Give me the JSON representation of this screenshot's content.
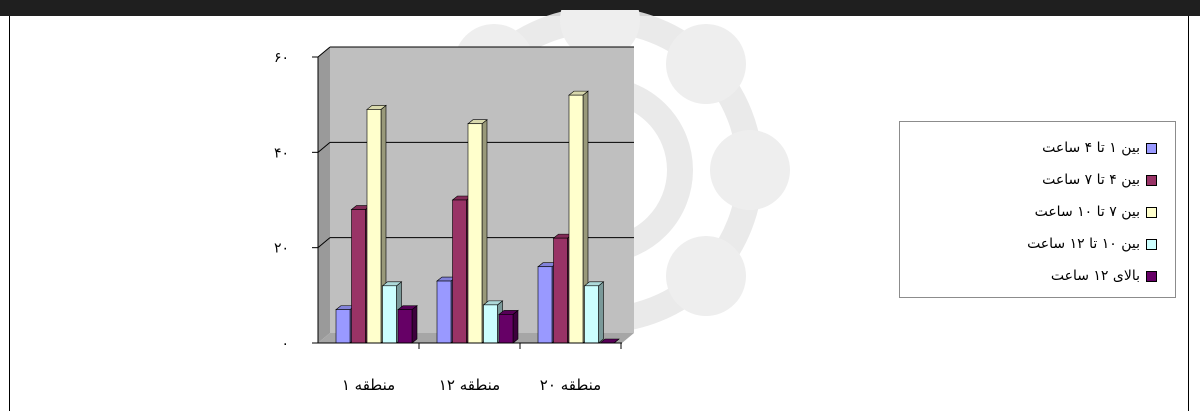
{
  "chart_data": {
    "type": "bar",
    "categories": [
      "منطقه ۱",
      "منطقه ۱۲",
      "منطقه ۲۰"
    ],
    "yticks": [
      "۰",
      "۲۰",
      "۴۰",
      "۶۰"
    ],
    "ylim": [
      0,
      60
    ],
    "grid": true,
    "legend_position": "right",
    "series": [
      {
        "name": "بین  ۱ تا ۴ ساعت",
        "color": "#9999ff",
        "values": [
          7,
          13,
          16
        ]
      },
      {
        "name": "بین  ۴ تا ۷ ساعت",
        "color": "#993366",
        "values": [
          28,
          30,
          22
        ]
      },
      {
        "name": "بین  ۷ تا ۱۰ ساعت",
        "color": "#ffffcc",
        "values": [
          49,
          46,
          52
        ]
      },
      {
        "name": "بین  ۱۰ تا ۱۲ ساعت",
        "color": "#ccffff",
        "values": [
          12,
          8,
          12
        ]
      },
      {
        "name": "بالای ۱۲ ساعت",
        "color": "#660066",
        "values": [
          7,
          6,
          0
        ]
      }
    ]
  }
}
